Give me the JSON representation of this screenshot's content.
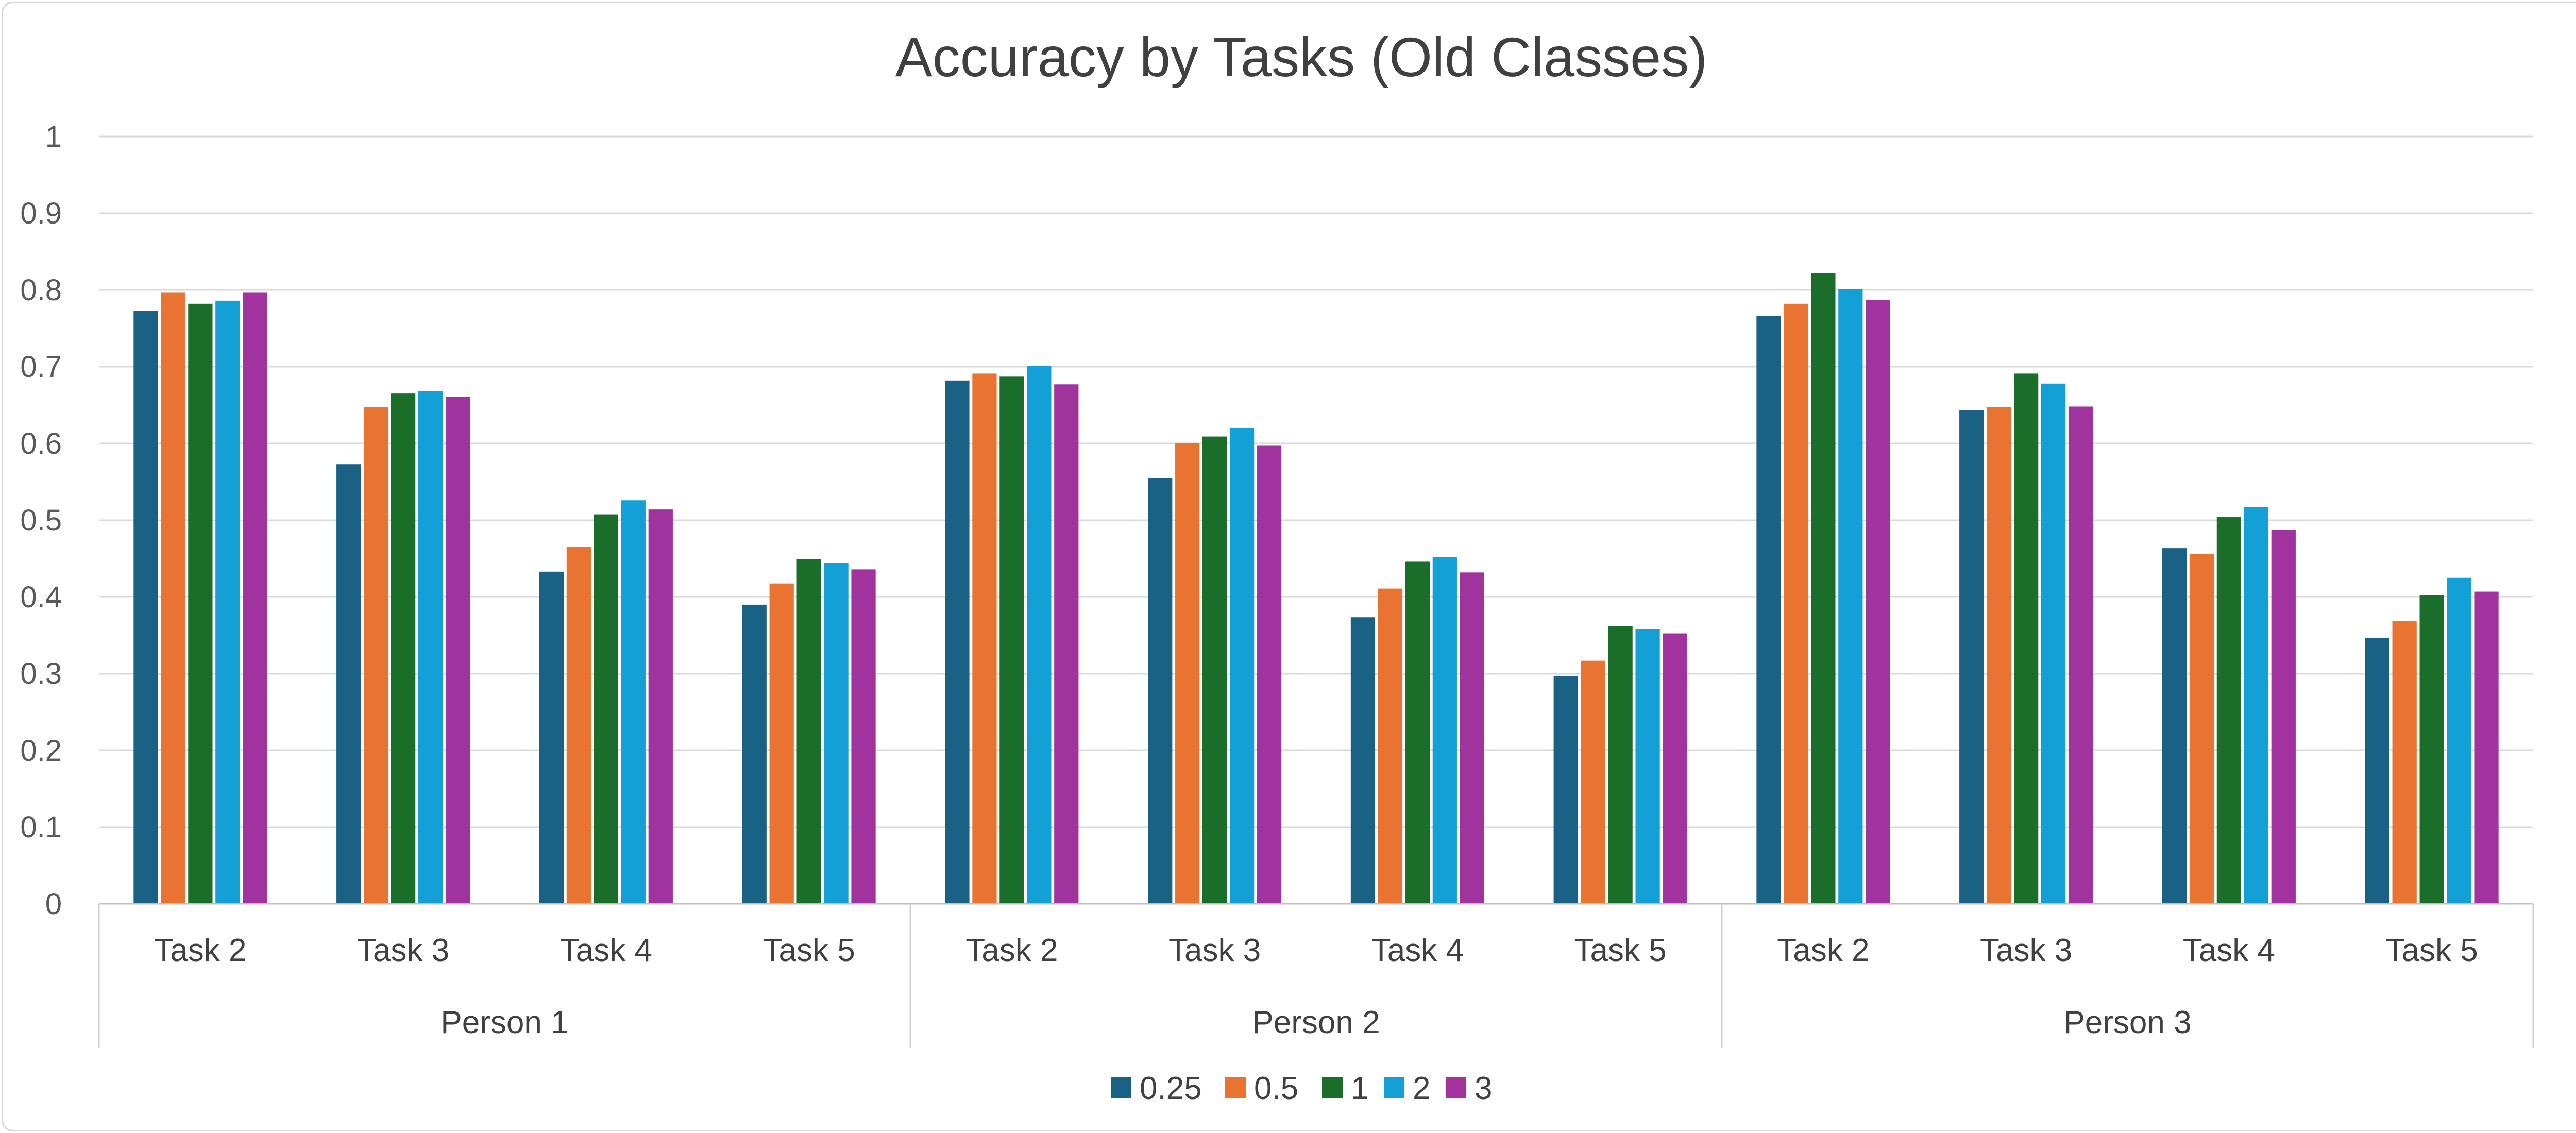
{
  "chart_data": {
    "type": "bar",
    "title": "Accuracy by Tasks (Old Classes)",
    "xlabel": "",
    "ylabel": "",
    "ylim": [
      0,
      1
    ],
    "yticks": [
      "0",
      "0.1",
      "0.2",
      "0.3",
      "0.4",
      "0.5",
      "0.6",
      "0.7",
      "0.8",
      "0.9",
      "1"
    ],
    "grid": true,
    "legend_position": "bottom",
    "groups": [
      {
        "label": "Person 1",
        "categories": [
          "Task 2",
          "Task 3",
          "Task 4",
          "Task 5"
        ]
      },
      {
        "label": "Person 2",
        "categories": [
          "Task 2",
          "Task 3",
          "Task 4",
          "Task 5"
        ]
      },
      {
        "label": "Person 3",
        "categories": [
          "Task 2",
          "Task 3",
          "Task 4",
          "Task 5"
        ]
      }
    ],
    "series": [
      {
        "name": "0.25",
        "color": "#1a6186",
        "values": [
          0.773,
          0.573,
          0.433,
          0.39,
          0.682,
          0.555,
          0.373,
          0.297,
          0.766,
          0.643,
          0.463,
          0.347
        ]
      },
      {
        "name": "0.5",
        "color": "#e97432",
        "values": [
          0.797,
          0.647,
          0.465,
          0.417,
          0.691,
          0.6,
          0.411,
          0.317,
          0.782,
          0.647,
          0.456,
          0.369
        ]
      },
      {
        "name": "1",
        "color": "#1a6e2a",
        "values": [
          0.782,
          0.665,
          0.507,
          0.449,
          0.687,
          0.609,
          0.446,
          0.362,
          0.822,
          0.691,
          0.504,
          0.402
        ]
      },
      {
        "name": "2",
        "color": "#12a0d6",
        "values": [
          0.786,
          0.668,
          0.526,
          0.444,
          0.701,
          0.62,
          0.452,
          0.358,
          0.801,
          0.678,
          0.517,
          0.425
        ]
      },
      {
        "name": "3",
        "color": "#a0339e",
        "values": [
          0.797,
          0.661,
          0.514,
          0.436,
          0.677,
          0.597,
          0.432,
          0.352,
          0.787,
          0.648,
          0.487,
          0.407
        ]
      }
    ]
  }
}
